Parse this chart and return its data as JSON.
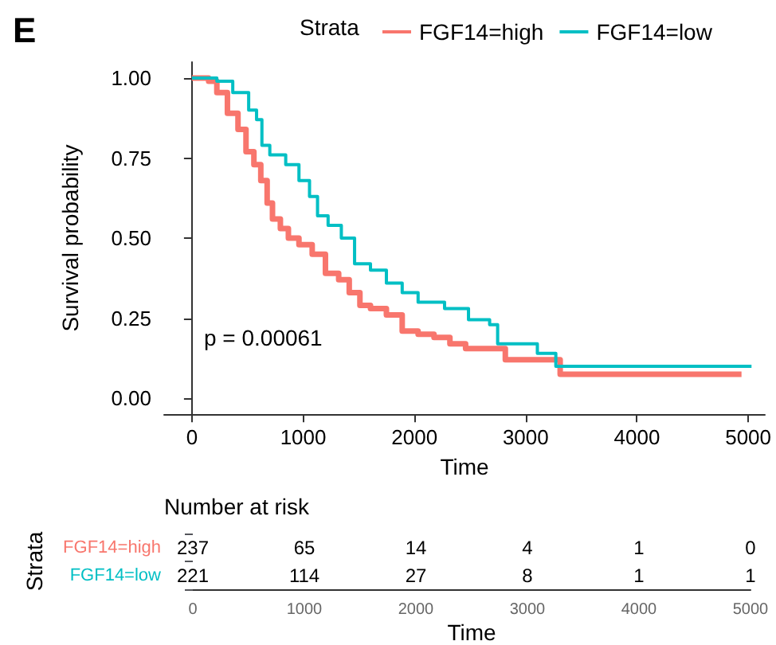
{
  "chart_data": [
    {
      "type": "step",
      "xlabel": "Time",
      "ylabel": "Survival probability",
      "legend_title": "Strata",
      "legend": "top",
      "annotations": [
        "E",
        "p = 0.00061"
      ],
      "xlim": [
        -250,
        5150
      ],
      "xticks": [
        0,
        1000,
        2000,
        3000,
        4000,
        5000
      ],
      "ylim": [
        -0.05,
        1.05
      ],
      "yticks": [
        {
          "value": 0,
          "label": "0.00"
        },
        {
          "value": 0.25,
          "label": "0.25"
        },
        {
          "value": 0.5,
          "label": "0.50"
        },
        {
          "value": 0.75,
          "label": "0.75"
        },
        {
          "value": 1,
          "label": "1.00"
        }
      ],
      "grid": false,
      "line_style": "solid",
      "series": [
        {
          "name": "FGF14=high",
          "color": "#f8766d",
          "x": [
            0,
            150,
            224,
            319,
            414,
            486,
            557,
            619,
            676,
            724,
            795,
            867,
            962,
            1081,
            1200,
            1319,
            1414,
            1510,
            1605,
            1748,
            1890,
            2033,
            2176,
            2319,
            2460,
            2817,
            3310,
            4940
          ],
          "values": [
            1,
            0.99,
            0.955,
            0.89,
            0.84,
            0.77,
            0.73,
            0.68,
            0.61,
            0.56,
            0.53,
            0.5,
            0.48,
            0.45,
            0.39,
            0.37,
            0.33,
            0.29,
            0.28,
            0.26,
            0.21,
            0.2,
            0.19,
            0.17,
            0.155,
            0.12,
            0.075,
            0.075
          ]
        },
        {
          "name": "FGF14=low",
          "color": "#00bfc4",
          "x": [
            0,
            224,
            367,
            510,
            581,
            629,
            700,
            843,
            962,
            1057,
            1129,
            1224,
            1343,
            1462,
            1605,
            1748,
            1890,
            2033,
            2271,
            2486,
            2676,
            2748,
            3105,
            3271,
            5030
          ],
          "values": [
            1,
            0.99,
            0.955,
            0.9,
            0.87,
            0.79,
            0.76,
            0.73,
            0.68,
            0.63,
            0.57,
            0.54,
            0.5,
            0.42,
            0.4,
            0.36,
            0.33,
            0.3,
            0.28,
            0.245,
            0.23,
            0.17,
            0.14,
            0.1,
            0.1
          ]
        }
      ]
    },
    {
      "type": "heatmap",
      "title": "Number at risk",
      "xlabel": "Time",
      "ylabel": "Strata",
      "data_labels": true,
      "categories": [
        "0",
        "1000",
        "2000",
        "3000",
        "4000",
        "5000"
      ],
      "y_categories": [
        "FGF14=high",
        "FGF14=low"
      ],
      "cells": [
        [
          237,
          65,
          14,
          4,
          1,
          0
        ],
        [
          221,
          114,
          27,
          8,
          1,
          1
        ]
      ]
    }
  ]
}
